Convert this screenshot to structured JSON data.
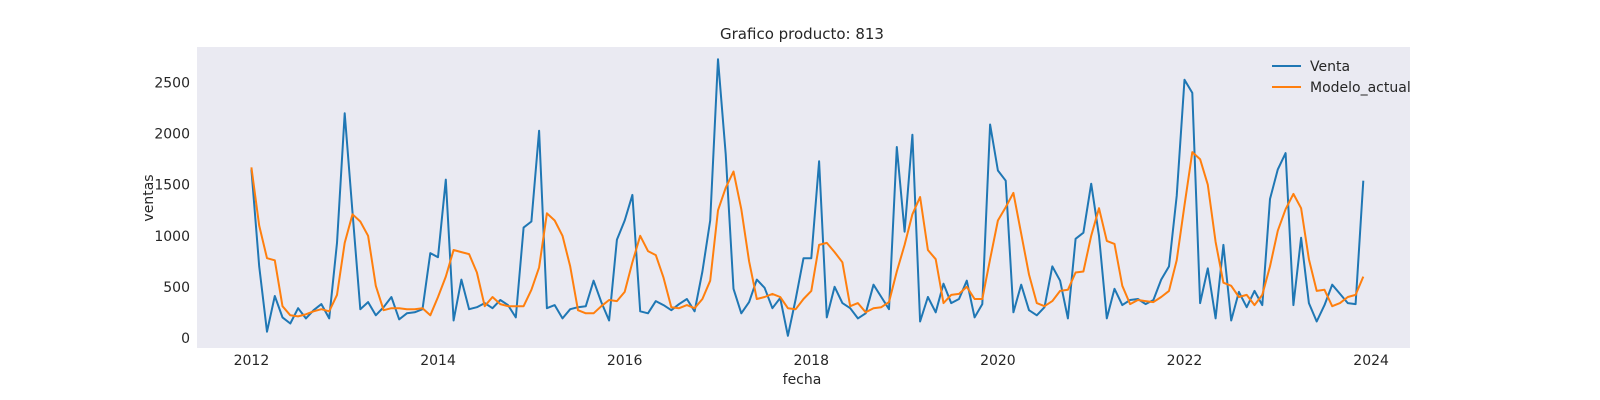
{
  "colors": {
    "plot_background": "#eaeaf2",
    "venta": "#1f77b4",
    "modelo_actual": "#ff7f0e"
  },
  "chart_data": {
    "type": "line",
    "title": "Grafico producto: 813",
    "xlabel": "fecha",
    "ylabel": "ventas",
    "xlim": [
      "2011-06",
      "2024-06"
    ],
    "ylim": [
      -100,
      2850
    ],
    "xticks": [
      "2012",
      "2014",
      "2016",
      "2018",
      "2020",
      "2022",
      "2024"
    ],
    "yticks": [
      0,
      500,
      1000,
      1500,
      2000,
      2500
    ],
    "grid": false,
    "legend": "top-right",
    "x_start": "2012-01",
    "x_end": "2023-12",
    "x_step": "monthly",
    "series": [
      {
        "name": "Venta",
        "color": "#1f77b4",
        "values": [
          1650,
          700,
          60,
          410,
          200,
          140,
          290,
          190,
          270,
          330,
          190,
          930,
          2200,
          1230,
          280,
          350,
          220,
          300,
          400,
          180,
          240,
          250,
          280,
          830,
          790,
          1550,
          170,
          570,
          280,
          300,
          340,
          290,
          370,
          320,
          200,
          1080,
          1140,
          2030,
          290,
          320,
          190,
          280,
          300,
          310,
          560,
          350,
          170,
          960,
          1150,
          1400,
          260,
          240,
          360,
          320,
          270,
          330,
          380,
          260,
          650,
          1150,
          2730,
          1800,
          480,
          240,
          350,
          570,
          490,
          290,
          390,
          20,
          380,
          780,
          780,
          1730,
          200,
          500,
          340,
          290,
          190,
          240,
          520,
          400,
          280,
          1870,
          1040,
          1990,
          160,
          400,
          250,
          530,
          340,
          380,
          560,
          200,
          330,
          2090,
          1640,
          1540,
          250,
          520,
          270,
          220,
          300,
          700,
          560,
          190,
          970,
          1030,
          1510,
          1000,
          190,
          480,
          320,
          370,
          380,
          330,
          370,
          570,
          700,
          1390,
          2530,
          2400,
          340,
          680,
          190,
          910,
          170,
          450,
          300,
          460,
          320,
          1360,
          1650,
          1810,
          320,
          980,
          340,
          160,
          320,
          520,
          430,
          340,
          330,
          1540
        ]
      },
      {
        "name": "Modelo_actual",
        "color": "#ff7f0e",
        "values": [
          1670,
          1100,
          780,
          760,
          310,
          220,
          210,
          230,
          260,
          280,
          260,
          420,
          930,
          1210,
          1140,
          1000,
          510,
          270,
          290,
          290,
          280,
          280,
          290,
          220,
          400,
          600,
          860,
          840,
          820,
          640,
          310,
          400,
          330,
          310,
          310,
          310,
          470,
          690,
          1220,
          1150,
          1000,
          700,
          270,
          240,
          240,
          310,
          370,
          360,
          450,
          740,
          1000,
          850,
          810,
          590,
          300,
          290,
          320,
          290,
          380,
          560,
          1250,
          1470,
          1630,
          1260,
          750,
          380,
          400,
          430,
          400,
          290,
          280,
          380,
          460,
          910,
          930,
          840,
          740,
          310,
          340,
          250,
          290,
          300,
          350,
          650,
          910,
          1210,
          1380,
          860,
          770,
          340,
          420,
          430,
          500,
          380,
          380,
          770,
          1150,
          1280,
          1420,
          1020,
          620,
          340,
          310,
          360,
          460,
          470,
          640,
          650,
          1000,
          1270,
          950,
          920,
          510,
          330,
          370,
          360,
          350,
          400,
          460,
          760,
          1300,
          1820,
          1750,
          1500,
          940,
          540,
          510,
          400,
          420,
          320,
          420,
          700,
          1050,
          1260,
          1410,
          1270,
          770,
          460,
          470,
          310,
          340,
          400,
          420,
          600
        ]
      }
    ]
  }
}
